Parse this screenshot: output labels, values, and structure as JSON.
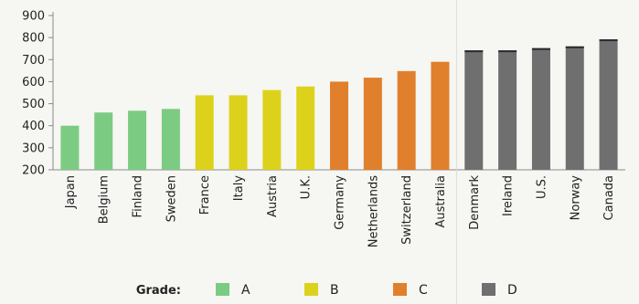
{
  "chart_data": {
    "type": "bar",
    "categories": [
      "Japan",
      "Belgium",
      "Finland",
      "Sweden",
      "France",
      "Italy",
      "Austria",
      "U.K.",
      "Germany",
      "Netherlands",
      "Switzerland",
      "Australia",
      "Denmark",
      "Ireland",
      "U.S.",
      "Norway",
      "Canada"
    ],
    "values": [
      400,
      460,
      468,
      476,
      538,
      538,
      562,
      578,
      600,
      618,
      648,
      690,
      742,
      742,
      752,
      760,
      792
    ],
    "grades": [
      "A",
      "A",
      "A",
      "A",
      "B",
      "B",
      "B",
      "B",
      "C",
      "C",
      "C",
      "C",
      "D",
      "D",
      "D",
      "D",
      "D"
    ],
    "ylim": [
      200,
      900
    ],
    "yticks": [
      200,
      300,
      400,
      500,
      600,
      700,
      800,
      900
    ],
    "grid": false,
    "legend": {
      "title": "Grade:",
      "placement": "bottom",
      "items": [
        {
          "label": "A",
          "color": "#7ccb82"
        },
        {
          "label": "B",
          "color": "#dcd21c"
        },
        {
          "label": "C",
          "color": "#e07f2c"
        },
        {
          "label": "D",
          "color": "#6f6f70"
        }
      ]
    }
  }
}
